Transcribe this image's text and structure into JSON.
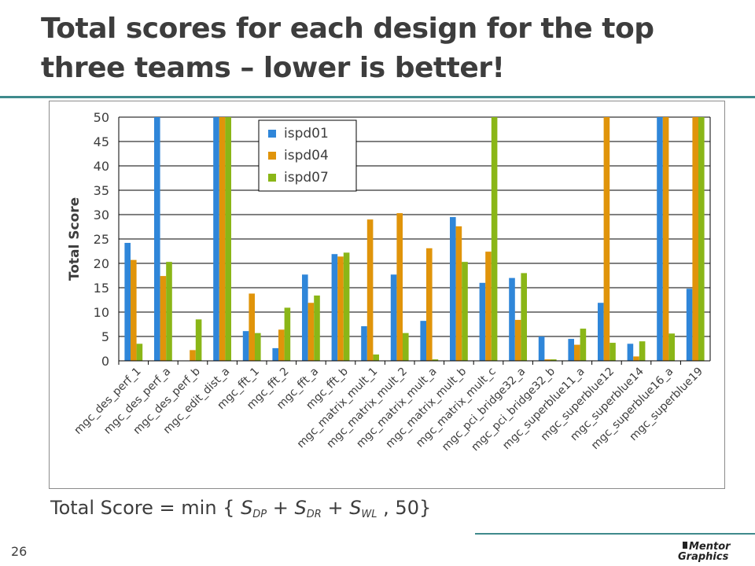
{
  "slide": {
    "title": "Total scores for each design for the top three teams – lower is better!",
    "page_number": "26",
    "logo_text": "Mentor Graphics"
  },
  "formula": {
    "lhs": "Total Score = min { ",
    "s": "S",
    "sub_dp": "DP",
    "sub_dr": "DR",
    "sub_wl": "WL",
    "plus": " + ",
    "tail": " , 50}"
  },
  "colors": {
    "accent_rule": "#3f8a8c",
    "ispd01": "#2f86d9",
    "ispd04": "#e0940a",
    "ispd07": "#8ab617",
    "grid": "#000000",
    "text": "#3d3d3d"
  },
  "chart_data": {
    "type": "bar",
    "ylabel": "Total Score",
    "ylim": [
      0,
      50
    ],
    "yticks": [
      0,
      5,
      10,
      15,
      20,
      25,
      30,
      35,
      40,
      45,
      50
    ],
    "grid": true,
    "legend_position": "top-left inside plot",
    "categories": [
      "mgc_des_perf_1",
      "mgc_des_perf_a",
      "mgc_des_perf_b",
      "mgc_edit_dist_a",
      "mgc_fft_1",
      "mgc_fft_2",
      "mgc_fft_a",
      "mgc_fft_b",
      "mgc_matrix_mult_1",
      "mgc_matrix_mult_2",
      "mgc_matrix_mult_a",
      "mgc_matrix_mult_b",
      "mgc_matrix_mult_c",
      "mgc_pci_bridge32_a",
      "mgc_pci_bridge32_b",
      "mgc_superblue11_a",
      "mgc_superblue12",
      "mgc_superblue14",
      "mgc_superblue16_a",
      "mgc_superblue19"
    ],
    "series": [
      {
        "name": "ispd01",
        "color": "#2f86d9",
        "values": [
          24.2,
          50,
          0,
          50,
          6.1,
          2.6,
          17.7,
          21.9,
          7.1,
          17.7,
          8.2,
          29.5,
          16,
          17,
          5,
          4.5,
          11.9,
          3.5,
          50,
          14.8
        ]
      },
      {
        "name": "ispd04",
        "color": "#e0940a",
        "values": [
          20.7,
          17.4,
          2.2,
          50,
          13.8,
          6.4,
          11.9,
          21.4,
          29,
          30.3,
          23.1,
          27.6,
          22.4,
          8.4,
          0.3,
          3.3,
          50,
          0.9,
          50,
          50
        ]
      },
      {
        "name": "ispd07",
        "color": "#8ab617",
        "values": [
          3.5,
          20.3,
          8.5,
          50,
          5.7,
          10.9,
          13.4,
          22.2,
          1.3,
          5.7,
          0.3,
          20.3,
          50,
          18,
          0.3,
          6.6,
          3.7,
          4,
          5.6,
          50
        ]
      }
    ]
  }
}
